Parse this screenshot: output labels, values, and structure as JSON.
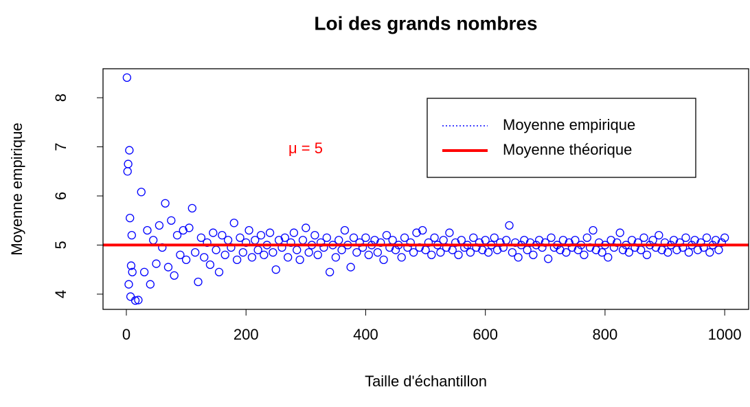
{
  "chart_data": {
    "type": "scatter",
    "title": "Loi des grands nombres",
    "xlabel": "Taille d'échantillon",
    "ylabel": "Moyenne empirique",
    "annotation": "μ = 5",
    "xlim": [
      -39,
      1040
    ],
    "ylim": [
      3.69,
      8.59
    ],
    "xticks": [
      0,
      200,
      400,
      600,
      800,
      1000
    ],
    "yticks": [
      4,
      5,
      6,
      7,
      8
    ],
    "legend": "upper right",
    "series": [
      {
        "name": "Moyenne empirique",
        "color": "#0000ff",
        "linestyle": "dotted",
        "x": [
          1,
          2,
          3,
          4,
          5,
          6,
          7,
          8,
          9,
          10,
          15,
          20,
          25,
          30,
          35,
          40,
          45,
          50,
          55,
          60,
          65,
          70,
          75,
          80,
          85,
          90,
          95,
          100,
          105,
          110,
          115,
          120,
          125,
          130,
          135,
          140,
          145,
          150,
          155,
          160,
          165,
          170,
          175,
          180,
          185,
          190,
          195,
          200,
          205,
          210,
          215,
          220,
          225,
          230,
          235,
          240,
          245,
          250,
          255,
          260,
          265,
          270,
          275,
          280,
          285,
          290,
          295,
          300,
          305,
          310,
          315,
          320,
          325,
          330,
          335,
          340,
          345,
          350,
          355,
          360,
          365,
          370,
          375,
          380,
          385,
          390,
          395,
          400,
          405,
          410,
          415,
          420,
          425,
          430,
          435,
          440,
          445,
          450,
          455,
          460,
          465,
          470,
          475,
          480,
          485,
          490,
          495,
          500,
          505,
          510,
          515,
          520,
          525,
          530,
          535,
          540,
          545,
          550,
          555,
          560,
          565,
          570,
          575,
          580,
          585,
          590,
          595,
          600,
          605,
          610,
          615,
          620,
          625,
          630,
          635,
          640,
          645,
          650,
          655,
          660,
          665,
          670,
          675,
          680,
          685,
          690,
          695,
          700,
          705,
          710,
          715,
          720,
          725,
          730,
          735,
          740,
          745,
          750,
          755,
          760,
          765,
          770,
          775,
          780,
          785,
          790,
          795,
          800,
          805,
          810,
          815,
          820,
          825,
          830,
          835,
          840,
          845,
          850,
          855,
          860,
          865,
          870,
          875,
          880,
          885,
          890,
          895,
          900,
          905,
          910,
          915,
          920,
          925,
          930,
          935,
          940,
          945,
          950,
          955,
          960,
          965,
          970,
          975,
          980,
          985,
          990,
          995,
          1000
        ],
        "values": [
          8.41,
          6.5,
          6.65,
          4.2,
          6.93,
          5.55,
          3.95,
          4.58,
          5.2,
          4.45,
          3.87,
          3.88,
          6.08,
          4.45,
          5.3,
          4.2,
          5.1,
          4.62,
          5.4,
          4.95,
          5.85,
          4.55,
          5.5,
          4.38,
          5.2,
          4.8,
          5.3,
          4.7,
          5.35,
          5.75,
          4.85,
          4.25,
          5.15,
          4.75,
          5.05,
          4.6,
          5.25,
          4.9,
          4.45,
          5.2,
          4.8,
          5.1,
          4.95,
          5.45,
          4.7,
          5.15,
          4.85,
          5.05,
          5.3,
          4.75,
          5.1,
          4.9,
          5.2,
          4.8,
          5.0,
          5.25,
          4.85,
          4.5,
          5.1,
          4.95,
          5.15,
          4.75,
          5.05,
          5.25,
          4.9,
          4.7,
          5.1,
          5.35,
          4.85,
          5.0,
          5.2,
          4.8,
          5.05,
          4.95,
          5.15,
          4.45,
          5.0,
          4.75,
          5.1,
          4.9,
          5.3,
          5.0,
          4.55,
          5.15,
          4.85,
          5.05,
          4.95,
          5.15,
          4.8,
          5.0,
          5.1,
          4.85,
          5.05,
          4.7,
          5.2,
          4.95,
          5.1,
          4.9,
          5.0,
          4.75,
          5.15,
          4.95,
          5.05,
          4.85,
          5.25,
          4.95,
          5.3,
          4.9,
          5.05,
          4.8,
          5.15,
          5.0,
          4.85,
          5.1,
          4.95,
          5.25,
          4.9,
          5.05,
          4.8,
          5.1,
          4.95,
          5.0,
          4.85,
          5.15,
          4.95,
          5.05,
          4.9,
          5.1,
          4.85,
          5.0,
          5.15,
          4.9,
          5.05,
          4.95,
          5.1,
          5.4,
          4.85,
          5.05,
          4.75,
          5.0,
          5.1,
          4.9,
          5.05,
          4.8,
          5.0,
          5.1,
          4.95,
          5.05,
          4.72,
          5.15,
          4.95,
          5.0,
          4.9,
          5.1,
          4.85,
          5.05,
          4.95,
          5.1,
          4.9,
          5.0,
          4.8,
          5.15,
          4.95,
          5.3,
          4.9,
          5.05,
          4.85,
          5.0,
          4.75,
          5.1,
          4.95,
          5.05,
          5.25,
          4.9,
          5.0,
          4.85,
          5.1,
          4.95,
          5.05,
          4.9,
          5.15,
          4.8,
          5.0,
          5.1,
          4.95,
          5.2,
          4.9,
          5.05,
          4.85,
          5.0,
          5.1,
          4.9,
          5.05,
          4.95,
          5.15,
          4.85,
          5.0,
          5.1,
          4.9,
          5.05,
          4.95,
          5.15,
          4.85,
          5.0,
          5.1,
          4.9,
          5.05,
          5.15
        ]
      },
      {
        "name": "Moyenne théorique",
        "color": "#ff0000",
        "linestyle": "solid",
        "hline": 5
      }
    ]
  }
}
